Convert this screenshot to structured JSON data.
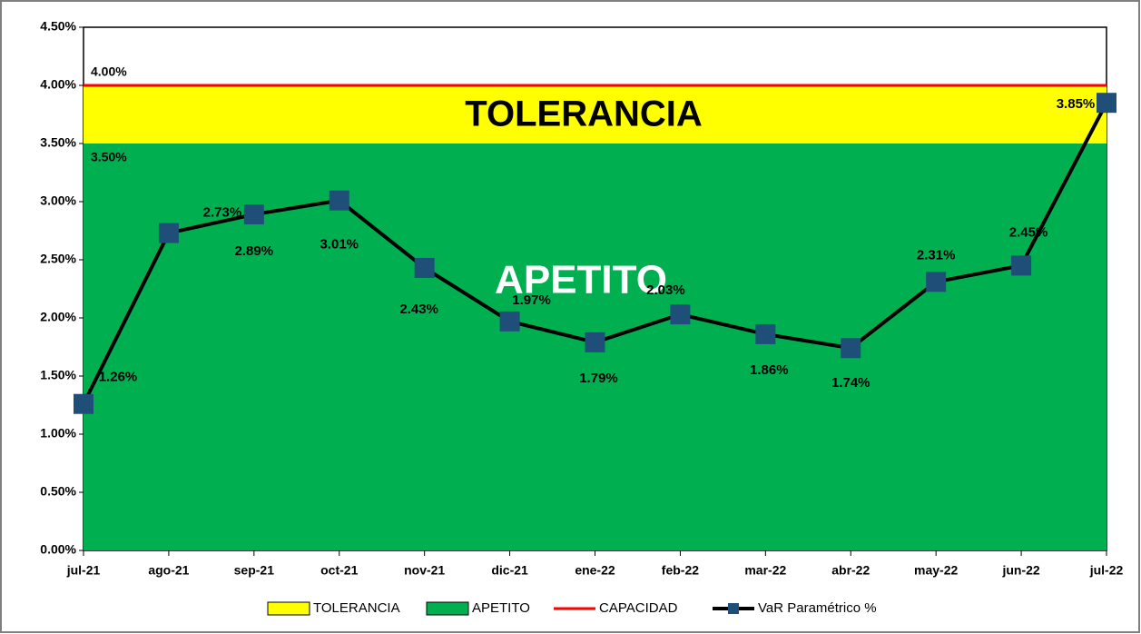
{
  "chart_data": {
    "type": "line",
    "categories": [
      "jul-21",
      "ago-21",
      "sep-21",
      "oct-21",
      "nov-21",
      "dic-21",
      "ene-22",
      "feb-22",
      "mar-22",
      "abr-22",
      "may-22",
      "jun-22",
      "jul-22"
    ],
    "bands": [
      {
        "name": "APETITO",
        "color": "#00b050",
        "value": 3.5,
        "value_label": "3.50%",
        "text": "APETITO"
      },
      {
        "name": "TOLERANCIA",
        "color": "#ffff00",
        "value": 0.5,
        "text": "TOLERANCIA"
      }
    ],
    "limit": {
      "name": "CAPACIDAD",
      "color": "#ff0000",
      "value": 4.0,
      "value_label": "4.00%"
    },
    "series": [
      {
        "name": "VaR Paramétrico %",
        "color": "#000000",
        "marker_color": "#1f4e79",
        "values": [
          1.26,
          2.73,
          2.89,
          3.01,
          2.43,
          1.97,
          1.79,
          2.03,
          1.86,
          1.74,
          2.31,
          2.45,
          3.85
        ],
        "value_labels": [
          "1.26%",
          "2.73%",
          "2.89%",
          "3.01%",
          "2.43%",
          "1.97%",
          "1.79%",
          "2.03%",
          "1.86%",
          "1.74%",
          "2.31%",
          "2.45%",
          "3.85%"
        ]
      }
    ],
    "ylim": [
      0,
      4.5
    ],
    "yticks": [
      {
        "value": 0,
        "label": "0.00%"
      },
      {
        "value": 0.5,
        "label": "0.50%"
      },
      {
        "value": 1,
        "label": "1.00%"
      },
      {
        "value": 1.5,
        "label": "1.50%"
      },
      {
        "value": 2,
        "label": "2.00%"
      },
      {
        "value": 2.5,
        "label": "2.50%"
      },
      {
        "value": 3,
        "label": "3.00%"
      },
      {
        "value": 3.5,
        "label": "3.50%"
      },
      {
        "value": 4,
        "label": "4.00%"
      },
      {
        "value": 4.5,
        "label": "4.50%"
      }
    ]
  }
}
